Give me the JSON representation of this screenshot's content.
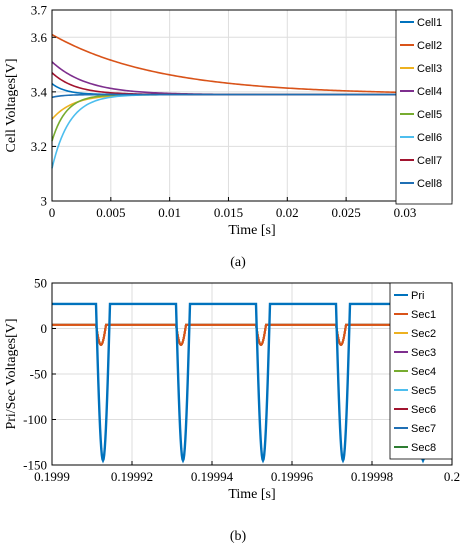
{
  "chart_data": [
    {
      "type": "line",
      "panel_label": "a",
      "caption": "(a)",
      "xlabel": "Time [s]",
      "ylabel": "Cell Voltages[V]",
      "xlim": [
        0,
        0.034
      ],
      "ylim": [
        3,
        3.7
      ],
      "xticks": [
        0,
        0.005,
        0.01,
        0.015,
        0.02,
        0.025,
        0.03
      ],
      "xtick_labels": [
        "0",
        "0.005",
        "0.01",
        "0.015",
        "0.02",
        "0.025",
        "0.03"
      ],
      "yticks": [
        3,
        3.2,
        3.4,
        3.6,
        3.7
      ],
      "ytick_labels": [
        "3",
        "3.2",
        "3.4",
        "3.6",
        "3.7"
      ],
      "grid": true,
      "legend_position": "top-right",
      "series": [
        {
          "name": "Cell1",
          "color": "#0072BD",
          "initial": 3.43,
          "final": 3.39,
          "tau": 0.0012
        },
        {
          "name": "Cell2",
          "color": "#D95319",
          "initial": 3.61,
          "final": 3.39,
          "tau": 0.009
        },
        {
          "name": "Cell3",
          "color": "#EDB120",
          "initial": 3.3,
          "final": 3.39,
          "tau": 0.0018
        },
        {
          "name": "Cell4",
          "color": "#7E2F8E",
          "initial": 3.51,
          "final": 3.39,
          "tau": 0.003
        },
        {
          "name": "Cell5",
          "color": "#77AC30",
          "initial": 3.22,
          "final": 3.39,
          "tau": 0.0012
        },
        {
          "name": "Cell6",
          "color": "#4DBEEE",
          "initial": 3.12,
          "final": 3.39,
          "tau": 0.0015
        },
        {
          "name": "Cell7",
          "color": "#A2142F",
          "initial": 3.47,
          "final": 3.39,
          "tau": 0.002
        },
        {
          "name": "Cell8",
          "color": "#1F6FB4",
          "initial": 3.38,
          "final": 3.39,
          "tau": 0.001
        }
      ]
    },
    {
      "type": "line",
      "panel_label": "b",
      "caption": "(b)",
      "xlabel": "Time [s]",
      "ylabel": "Pri/Sec Voltages[V]",
      "xlim": [
        0.1999,
        0.2
      ],
      "ylim": [
        -150,
        50
      ],
      "xticks": [
        0.1999,
        0.19992,
        0.19994,
        0.19996,
        0.19998,
        0.2
      ],
      "xtick_labels": [
        "0.1999",
        "0.19992",
        "0.19994",
        "0.19996",
        "0.19998",
        "0.2"
      ],
      "yticks": [
        -150,
        -100,
        -50,
        0,
        50
      ],
      "ytick_labels": [
        "-150",
        "-100",
        "-50",
        "0",
        "50"
      ],
      "grid": true,
      "legend_position": "top-right",
      "pulses_start": [
        0.199911,
        0.199931,
        0.199951,
        0.199971,
        0.199991
      ],
      "primary_high": 27,
      "primary_low": -145,
      "primary_pulse_width": 3.5e-06,
      "secondary_high": 4,
      "secondary_low": -18,
      "secondary_pulse_width": 2.5e-06,
      "series": [
        {
          "name": "Pri",
          "color": "#0072BD"
        },
        {
          "name": "Sec1",
          "color": "#D95319"
        },
        {
          "name": "Sec2",
          "color": "#EDB120"
        },
        {
          "name": "Sec3",
          "color": "#7E2F8E"
        },
        {
          "name": "Sec4",
          "color": "#77AC30"
        },
        {
          "name": "Sec5",
          "color": "#4DBEEE"
        },
        {
          "name": "Sec6",
          "color": "#A2142F"
        },
        {
          "name": "Sec7",
          "color": "#1F6FB4"
        },
        {
          "name": "Sec8",
          "color": "#2E7D32"
        }
      ]
    }
  ]
}
